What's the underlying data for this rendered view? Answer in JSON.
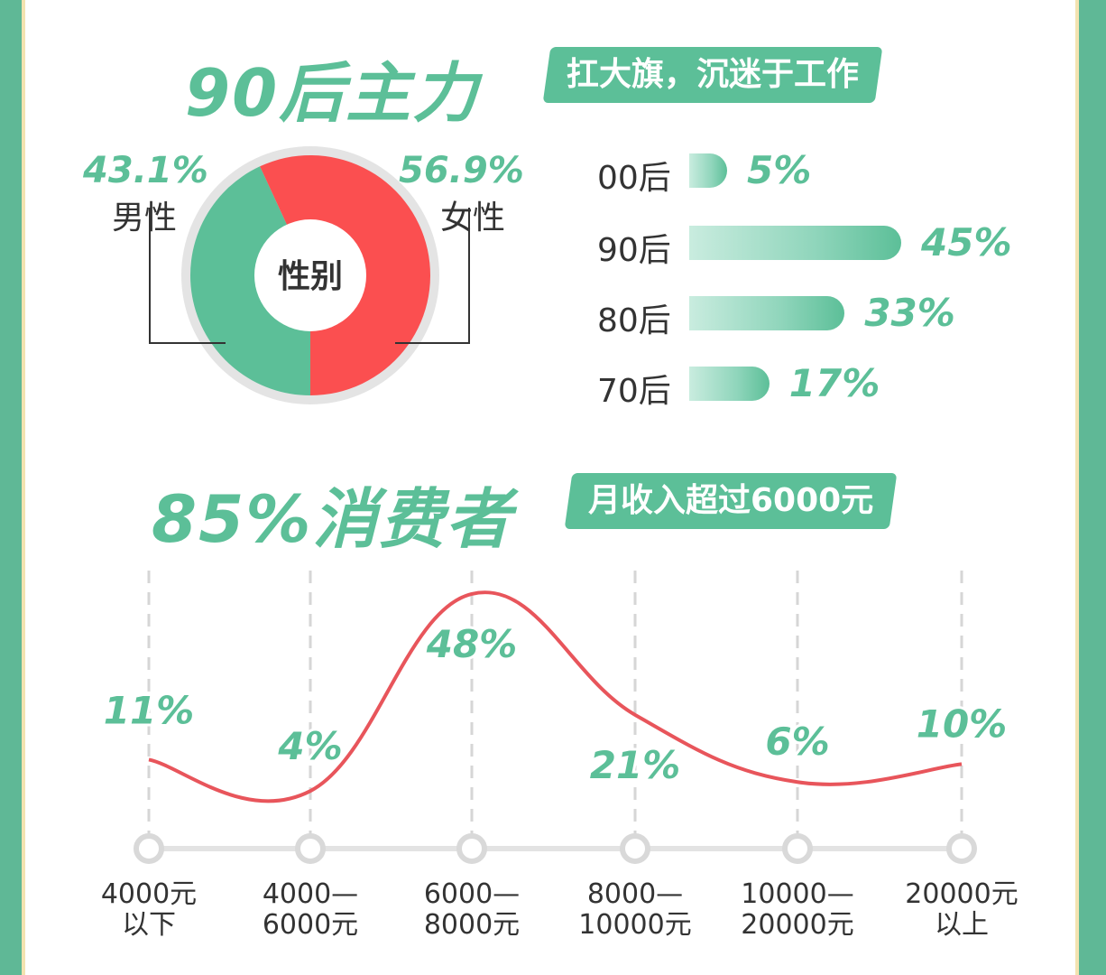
{
  "section1": {
    "headline": "90后主力",
    "tag": "扛大旗，沉迷于工作"
  },
  "gender": {
    "center_label": "性别",
    "male": {
      "label": "男性",
      "percent_text": "43.1%"
    },
    "female": {
      "label": "女性",
      "percent_text": "56.9%"
    },
    "colors": {
      "male": "#5cbf98",
      "female": "#fb4f50"
    }
  },
  "age_bars": [
    {
      "label": "00后",
      "value_text": "5%"
    },
    {
      "label": "90后",
      "value_text": "45%"
    },
    {
      "label": "80后",
      "value_text": "33%"
    },
    {
      "label": "70后",
      "value_text": "17%"
    }
  ],
  "section2": {
    "headline": "85%消费者",
    "tag": "月收入超过6000元"
  },
  "income_points": [
    {
      "line1": "4000元",
      "line2": "以下",
      "value_text": "11%"
    },
    {
      "line1": "4000—",
      "line2": "6000元",
      "value_text": "4%"
    },
    {
      "line1": "6000—",
      "line2": "8000元",
      "value_text": "48%"
    },
    {
      "line1": "8000—",
      "line2": "10000元",
      "value_text": "21%"
    },
    {
      "line1": "10000—",
      "line2": "20000元",
      "value_text": "6%"
    },
    {
      "line1": "20000元",
      "line2": "以上",
      "value_text": "10%"
    }
  ],
  "chart_data": [
    {
      "type": "pie",
      "categories": [
        "男性",
        "女性"
      ],
      "values": [
        43.1,
        56.9
      ],
      "title": "性别"
    },
    {
      "type": "bar",
      "categories": [
        "00后",
        "90后",
        "80后",
        "70后"
      ],
      "values": [
        5,
        45,
        33,
        17
      ]
    },
    {
      "type": "line",
      "categories": [
        "4000元以下",
        "4000—6000元",
        "6000—8000元",
        "8000—10000元",
        "10000—20000元",
        "20000元以上"
      ],
      "values": [
        11,
        4,
        48,
        21,
        6,
        10
      ],
      "line_color": "#e8555b"
    }
  ]
}
